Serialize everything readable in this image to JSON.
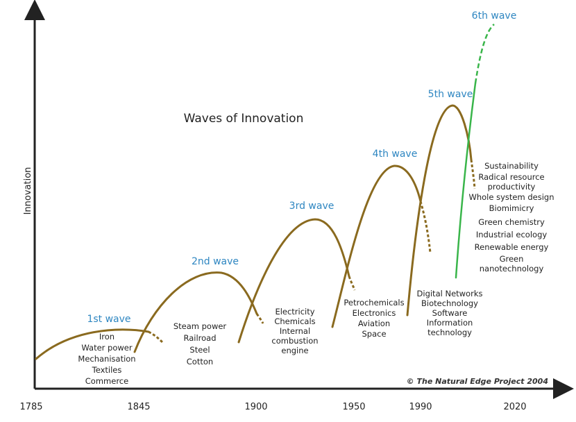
{
  "chart_data": {
    "type": "line",
    "title": "Waves of Innovation",
    "xlabel": "",
    "ylabel": "Innovation",
    "x_ticks": [
      "1785",
      "1845",
      "1900",
      "1950",
      "1990",
      "2020"
    ],
    "credit": "© The Natural Edge Project 2004",
    "colors": {
      "wave": "#8a6a1f",
      "wave_label": "#2e86c1",
      "green_wave": "#39b54a",
      "axis": "#222222",
      "text": "#222222"
    },
    "series": [
      {
        "name": "1st wave",
        "items": [
          "Iron",
          "Water power",
          "Mechanisation",
          "Textiles",
          "Commerce"
        ]
      },
      {
        "name": "2nd wave",
        "items": [
          "Steam power",
          "Railroad",
          "Steel",
          "Cotton"
        ]
      },
      {
        "name": "3rd wave",
        "items": [
          "Electricity",
          "Chemicals",
          "Internal",
          "combustion",
          "engine"
        ]
      },
      {
        "name": "4th wave",
        "items": [
          "Petrochemicals",
          "Electronics",
          "Aviation",
          "Space"
        ]
      },
      {
        "name": "5th wave",
        "items": [
          "Digital Networks",
          "Biotechnology",
          "Software",
          "Information",
          "technology"
        ]
      },
      {
        "name": "6th wave",
        "items": [
          "Sustainability",
          "Radical resource",
          "productivity",
          "Whole system design",
          "Biomimicry",
          "Green chemistry",
          "Industrial ecology",
          "Renewable energy",
          "Green",
          "nanotechnology"
        ]
      }
    ]
  }
}
